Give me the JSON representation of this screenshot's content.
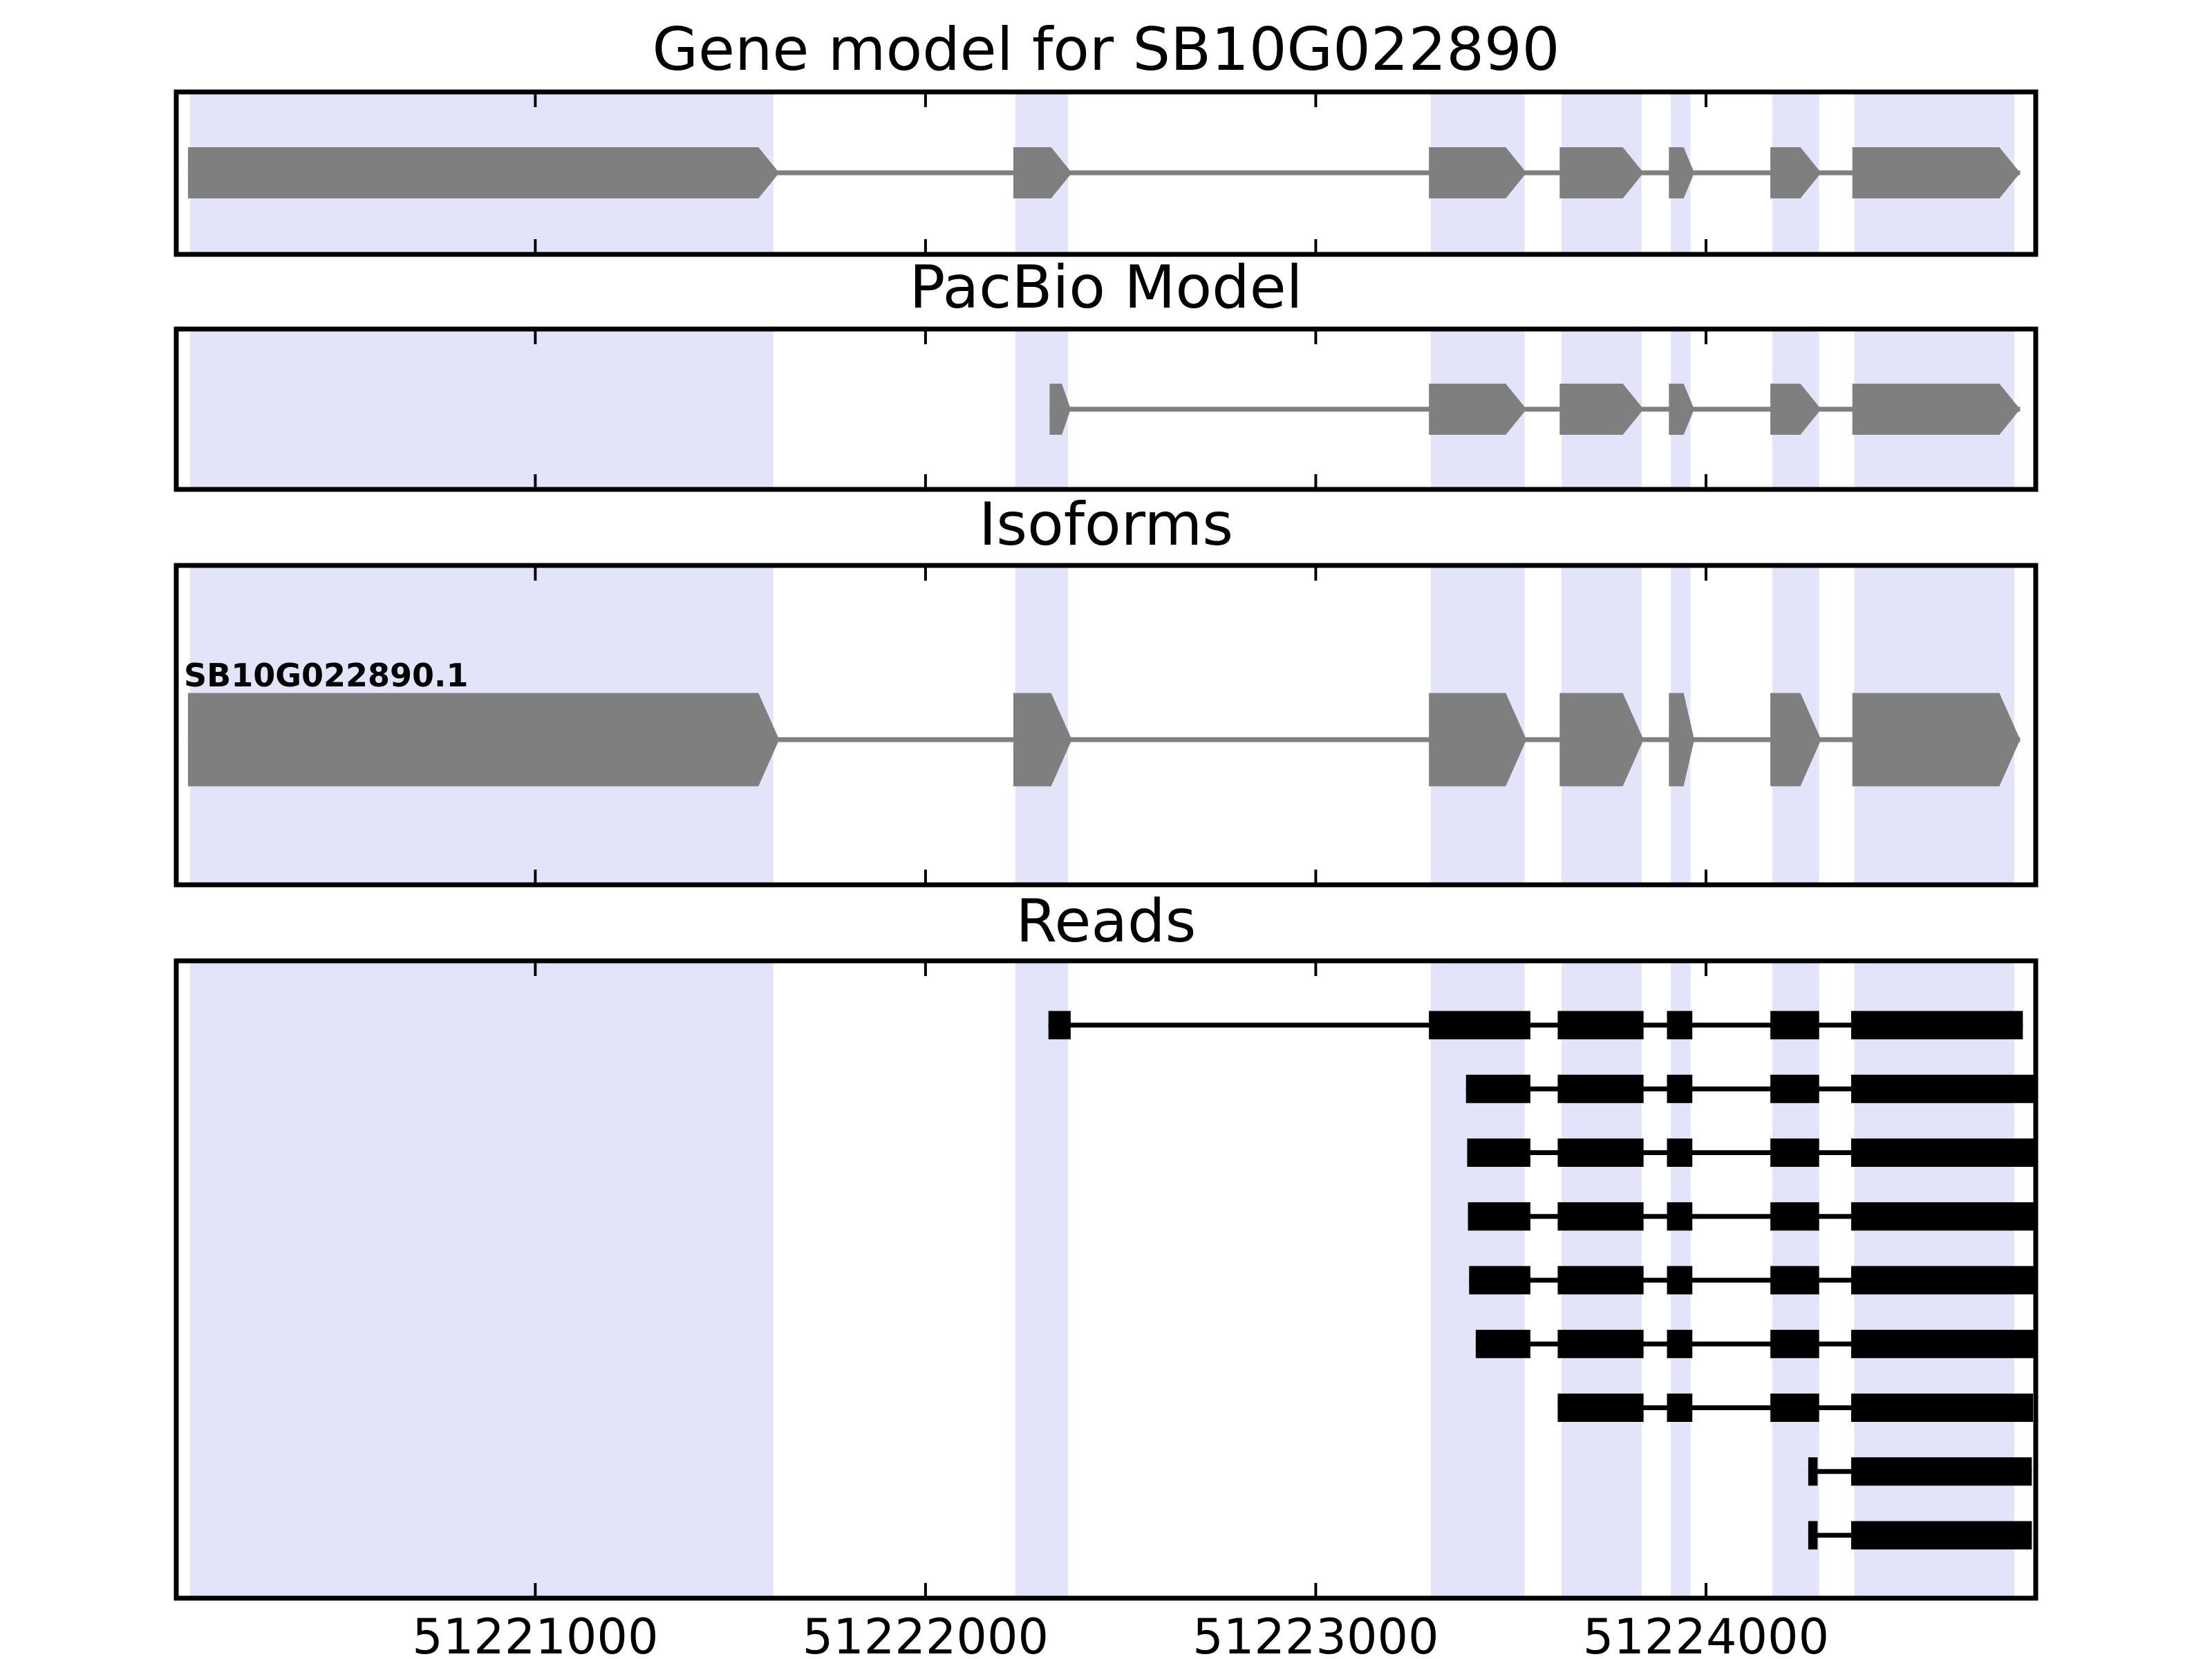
{
  "chart_data": {
    "type": "genome-annotation-tracks",
    "title": "Gene model for SB10G022890",
    "xlabel": "",
    "x_axis": {
      "xmin": 51220080,
      "xmax": 51224845,
      "ticks": [
        51221000,
        51222000,
        51223000,
        51224000
      ],
      "tick_labels": [
        "51221000",
        "51222000",
        "51223000",
        "51224000"
      ]
    },
    "colors": {
      "highlight": "#e3e3f9",
      "exon": "#7f7f7f",
      "read": "#000000",
      "border": "#000000",
      "background": "#ffffff"
    },
    "highlight_regions": [
      [
        51220115,
        51221610
      ],
      [
        51222230,
        51222365
      ],
      [
        51223295,
        51223535
      ],
      [
        51223630,
        51223835
      ],
      [
        51223910,
        51223960
      ],
      [
        51224170,
        51224290
      ],
      [
        51224380,
        51224790
      ]
    ],
    "panels": [
      {
        "title": "Gene model for SB10G022890",
        "type": "gene_model",
        "strand": "+",
        "exons": [
          [
            51220110,
            51221625
          ],
          [
            51222225,
            51222375
          ],
          [
            51223290,
            51223540
          ],
          [
            51223625,
            51223840
          ],
          [
            51223905,
            51223970
          ],
          [
            51224165,
            51224295
          ],
          [
            51224375,
            51224805
          ]
        ]
      },
      {
        "title": "PacBio Model",
        "type": "gene_model",
        "strand": "+",
        "exons": [
          [
            51222318,
            51222372
          ],
          [
            51223290,
            51223540
          ],
          [
            51223625,
            51223840
          ],
          [
            51223905,
            51223970
          ],
          [
            51224165,
            51224295
          ],
          [
            51224375,
            51224805
          ]
        ]
      },
      {
        "title": "Isoforms",
        "type": "isoform",
        "isoform_label": "SB10G022890.1",
        "strand": "+",
        "exons": [
          [
            51220110,
            51221625
          ],
          [
            51222225,
            51222375
          ],
          [
            51223290,
            51223540
          ],
          [
            51223625,
            51223840
          ],
          [
            51223905,
            51223970
          ],
          [
            51224165,
            51224295
          ],
          [
            51224375,
            51224805
          ]
        ]
      },
      {
        "title": "Reads",
        "type": "reads",
        "reads": [
          {
            "blocks": [
              [
                51222315,
                51222372
              ],
              [
                51223290,
                51223550
              ],
              [
                51223620,
                51223840
              ],
              [
                51223900,
                51223965
              ],
              [
                51224165,
                51224290
              ],
              [
                51224372,
                51224812
              ]
            ]
          },
          {
            "blocks": [
              [
                51223385,
                51223550
              ],
              [
                51223620,
                51223840
              ],
              [
                51223900,
                51223965
              ],
              [
                51224165,
                51224290
              ],
              [
                51224372,
                51224845
              ]
            ]
          },
          {
            "blocks": [
              [
                51223388,
                51223550
              ],
              [
                51223620,
                51223840
              ],
              [
                51223900,
                51223965
              ],
              [
                51224165,
                51224290
              ],
              [
                51224372,
                51224845
              ]
            ]
          },
          {
            "blocks": [
              [
                51223390,
                51223550
              ],
              [
                51223620,
                51223840
              ],
              [
                51223900,
                51223965
              ],
              [
                51224165,
                51224290
              ],
              [
                51224372,
                51224845
              ]
            ]
          },
          {
            "blocks": [
              [
                51223393,
                51223550
              ],
              [
                51223620,
                51223840
              ],
              [
                51223900,
                51223965
              ],
              [
                51224165,
                51224290
              ],
              [
                51224372,
                51224845
              ]
            ]
          },
          {
            "blocks": [
              [
                51223410,
                51223550
              ],
              [
                51223620,
                51223840
              ],
              [
                51223900,
                51223965
              ],
              [
                51224165,
                51224290
              ],
              [
                51224372,
                51224840
              ]
            ]
          },
          {
            "blocks": [
              [
                51223620,
                51223840
              ],
              [
                51223900,
                51223965
              ],
              [
                51224165,
                51224290
              ],
              [
                51224372,
                51224838
              ]
            ]
          },
          {
            "blocks": [
              [
                51224262,
                51224286
              ],
              [
                51224372,
                51224835
              ]
            ]
          },
          {
            "blocks": [
              [
                51224262,
                51224286
              ],
              [
                51224372,
                51224835
              ]
            ]
          }
        ]
      }
    ]
  }
}
